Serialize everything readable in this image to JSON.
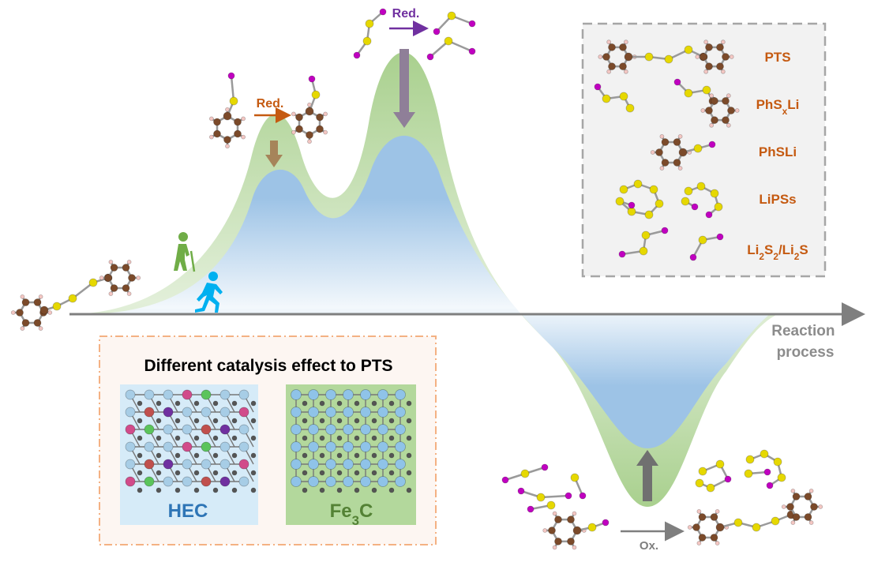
{
  "annotations": {
    "red_1": "Red.",
    "red_2": "Red.",
    "ox": "Ox."
  },
  "axis": {
    "label_lines": [
      "Reaction",
      "process"
    ]
  },
  "legend": {
    "items": [
      {
        "segments": [
          {
            "text": "PTS"
          }
        ]
      },
      {
        "segments": [
          {
            "text": "PhS"
          },
          {
            "text": "x",
            "sub": true
          },
          {
            "text": "Li"
          }
        ]
      },
      {
        "segments": [
          {
            "text": "PhSLi"
          }
        ]
      },
      {
        "segments": [
          {
            "text": "LiPSs"
          }
        ]
      },
      {
        "segments": [
          {
            "text": "Li"
          },
          {
            "text": "2",
            "sub": true
          },
          {
            "text": "S"
          },
          {
            "text": "2",
            "sub": true
          },
          {
            "text": "/Li"
          },
          {
            "text": "2",
            "sub": true
          },
          {
            "text": "S"
          }
        ]
      }
    ]
  },
  "catalysis_box": {
    "title": "Different catalysis effect to PTS",
    "panels": [
      {
        "label_segments": [
          {
            "text": "HEC"
          }
        ]
      },
      {
        "label_segments": [
          {
            "text": "Fe"
          },
          {
            "text": "3",
            "sub": true
          },
          {
            "text": "C"
          }
        ]
      }
    ]
  }
}
